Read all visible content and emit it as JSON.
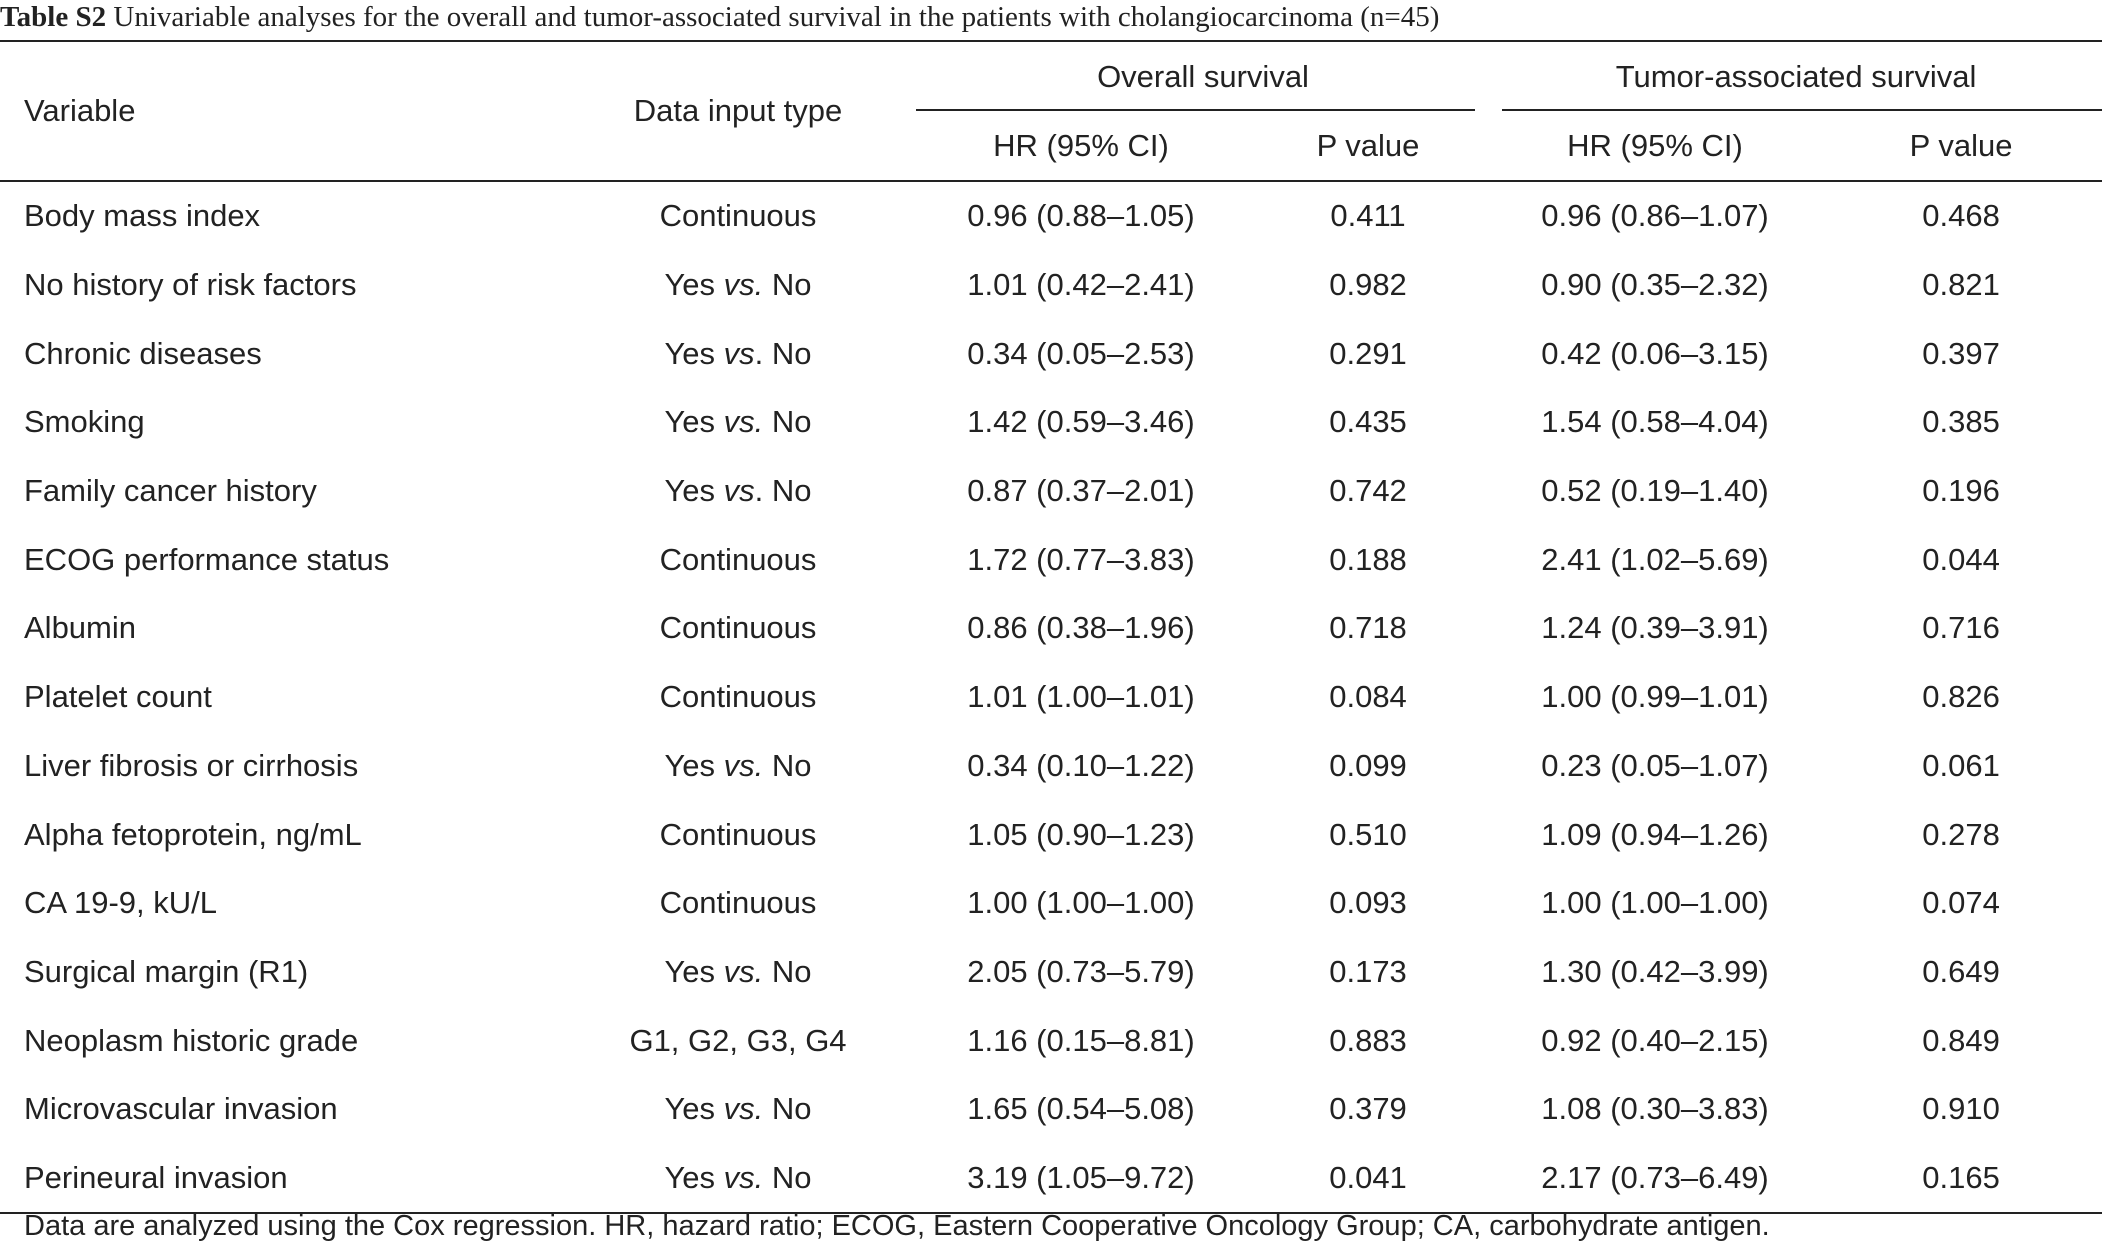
{
  "caption": {
    "label": "Table S2",
    "text": " Univariable analyses for the overall and tumor-associated survival in the patients with cholangiocarcinoma (n=45)"
  },
  "headers": {
    "variable": "Variable",
    "data_input_type": "Data input type",
    "overall_survival": "Overall survival",
    "tumor_survival": "Tumor-associated survival",
    "hr": "HR (95% CI)",
    "p": "P value"
  },
  "rows": [
    {
      "variable": "Body mass index",
      "type_a": "Continuous",
      "type_vs": "",
      "type_b": "",
      "os_hr": "0.96 (0.88–1.05)",
      "os_p": "0.411",
      "ts_hr": "0.96 (0.86–1.07)",
      "ts_p": "0.468"
    },
    {
      "variable": "No history of risk factors",
      "type_a": "Yes ",
      "type_vs": "vs.",
      "type_b": " No",
      "os_hr": "1.01 (0.42–2.41)",
      "os_p": "0.982",
      "ts_hr": "0.90 (0.35–2.32)",
      "ts_p": "0.821"
    },
    {
      "variable": "Chronic diseases",
      "type_a": "Yes ",
      "type_vs": "vs",
      "type_b": ". No",
      "os_hr": "0.34 (0.05–2.53)",
      "os_p": "0.291",
      "ts_hr": "0.42 (0.06–3.15)",
      "ts_p": "0.397"
    },
    {
      "variable": "Smoking",
      "type_a": "Yes ",
      "type_vs": "vs.",
      "type_b": " No",
      "os_hr": "1.42 (0.59–3.46)",
      "os_p": "0.435",
      "ts_hr": "1.54 (0.58–4.04)",
      "ts_p": "0.385"
    },
    {
      "variable": "Family cancer history",
      "type_a": "Yes ",
      "type_vs": "vs",
      "type_b": ". No",
      "os_hr": "0.87 (0.37–2.01)",
      "os_p": "0.742",
      "ts_hr": "0.52 (0.19–1.40)",
      "ts_p": "0.196"
    },
    {
      "variable": "ECOG performance status",
      "type_a": "Continuous",
      "type_vs": "",
      "type_b": "",
      "os_hr": "1.72 (0.77–3.83)",
      "os_p": "0.188",
      "ts_hr": "2.41 (1.02–5.69)",
      "ts_p": "0.044"
    },
    {
      "variable": "Albumin",
      "type_a": "Continuous",
      "type_vs": "",
      "type_b": "",
      "os_hr": "0.86 (0.38–1.96)",
      "os_p": "0.718",
      "ts_hr": "1.24 (0.39–3.91)",
      "ts_p": "0.716"
    },
    {
      "variable": "Platelet count",
      "type_a": "Continuous",
      "type_vs": "",
      "type_b": "",
      "os_hr": "1.01 (1.00–1.01)",
      "os_p": "0.084",
      "ts_hr": "1.00 (0.99–1.01)",
      "ts_p": "0.826"
    },
    {
      "variable": "Liver fibrosis or cirrhosis",
      "type_a": "Yes ",
      "type_vs": "vs.",
      "type_b": " No",
      "os_hr": "0.34 (0.10–1.22)",
      "os_p": "0.099",
      "ts_hr": "0.23 (0.05–1.07)",
      "ts_p": "0.061"
    },
    {
      "variable": "Alpha fetoprotein, ng/mL",
      "type_a": "Continuous",
      "type_vs": "",
      "type_b": "",
      "os_hr": "1.05 (0.90–1.23)",
      "os_p": "0.510",
      "ts_hr": "1.09 (0.94–1.26)",
      "ts_p": "0.278"
    },
    {
      "variable": "CA 19-9, kU/L",
      "type_a": "Continuous",
      "type_vs": "",
      "type_b": "",
      "os_hr": "1.00 (1.00–1.00)",
      "os_p": "0.093",
      "ts_hr": "1.00 (1.00–1.00)",
      "ts_p": "0.074"
    },
    {
      "variable": "Surgical margin (R1)",
      "type_a": "Yes ",
      "type_vs": "vs.",
      "type_b": " No",
      "os_hr": "2.05 (0.73–5.79)",
      "os_p": "0.173",
      "ts_hr": "1.30 (0.42–3.99)",
      "ts_p": "0.649"
    },
    {
      "variable": "Neoplasm historic grade",
      "type_a": "G1, G2, G3, G4",
      "type_vs": "",
      "type_b": "",
      "os_hr": "1.16 (0.15–8.81)",
      "os_p": "0.883",
      "ts_hr": "0.92 (0.40–2.15)",
      "ts_p": "0.849"
    },
    {
      "variable": "Microvascular invasion",
      "type_a": "Yes ",
      "type_vs": "vs.",
      "type_b": " No",
      "os_hr": "1.65 (0.54–5.08)",
      "os_p": "0.379",
      "ts_hr": "1.08 (0.30–3.83)",
      "ts_p": "0.910"
    },
    {
      "variable": "Perineural invasion",
      "type_a": "Yes ",
      "type_vs": "vs.",
      "type_b": " No",
      "os_hr": "3.19 (1.05–9.72)",
      "os_p": "0.041",
      "ts_hr": "2.17 (0.73–6.49)",
      "ts_p": "0.165"
    }
  ],
  "footnote": "Data are analyzed using the Cox regression. HR, hazard ratio; ECOG, Eastern Cooperative Oncology Group; CA, carbohydrate antigen."
}
